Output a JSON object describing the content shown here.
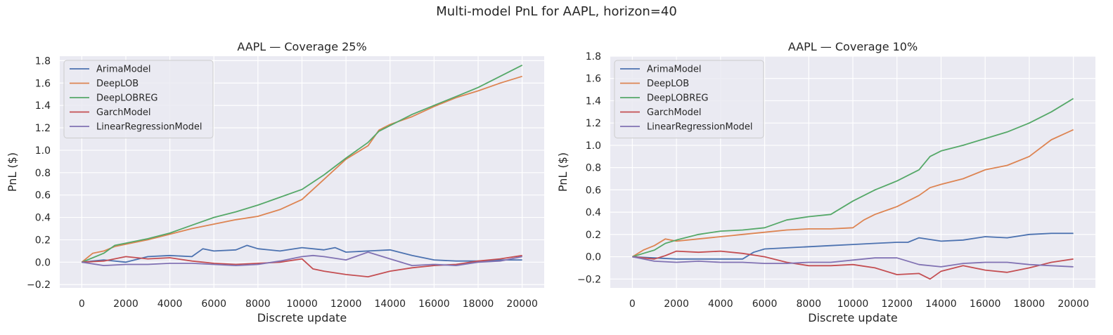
{
  "suptitle": "Multi-model PnL for AAPL, horizon=40",
  "colors": {
    "ArimaModel": "#4c72b0",
    "DeepLOB": "#dd8452",
    "DeepLOBREG": "#55a868",
    "GarchModel": "#c44e52",
    "LinearRegressionModel": "#8172b3",
    "plot_background": "#eaeaf2",
    "grid": "#ffffff"
  },
  "chart_data": [
    {
      "type": "line",
      "title": "AAPL — Coverage 25%",
      "xlabel": "Discrete update",
      "ylabel": "PnL ($)",
      "xlim": [
        -1000,
        21000
      ],
      "ylim": [
        -0.23,
        1.84
      ],
      "xticks": [
        0,
        2000,
        4000,
        6000,
        8000,
        10000,
        12000,
        14000,
        16000,
        18000,
        20000
      ],
      "yticks": [
        -0.2,
        0.0,
        0.2,
        0.4,
        0.6,
        0.8,
        1.0,
        1.2,
        1.4,
        1.6,
        1.8
      ],
      "grid": true,
      "legend_position": "upper-left",
      "series": [
        {
          "name": "ArimaModel",
          "x": [
            0,
            1000,
            2000,
            3000,
            4000,
            5000,
            5500,
            6000,
            7000,
            7500,
            8000,
            9000,
            10000,
            11000,
            11500,
            12000,
            13000,
            14000,
            15000,
            16000,
            17000,
            18000,
            19000,
            20000
          ],
          "y": [
            0.0,
            0.02,
            0.0,
            0.05,
            0.06,
            0.05,
            0.12,
            0.1,
            0.11,
            0.15,
            0.12,
            0.1,
            0.13,
            0.11,
            0.13,
            0.09,
            0.1,
            0.11,
            0.06,
            0.02,
            0.01,
            0.01,
            0.02,
            0.02
          ]
        },
        {
          "name": "DeepLOB",
          "x": [
            0,
            500,
            1000,
            1500,
            2000,
            3000,
            4000,
            5000,
            6000,
            7000,
            8000,
            9000,
            10000,
            11000,
            12000,
            13000,
            13500,
            14000,
            15000,
            16000,
            17000,
            18000,
            19000,
            20000
          ],
          "y": [
            0.0,
            0.08,
            0.1,
            0.14,
            0.16,
            0.2,
            0.25,
            0.3,
            0.34,
            0.38,
            0.41,
            0.47,
            0.56,
            0.74,
            0.92,
            1.04,
            1.18,
            1.23,
            1.3,
            1.39,
            1.47,
            1.53,
            1.6,
            1.66
          ]
        },
        {
          "name": "DeepLOBREG",
          "x": [
            0,
            500,
            1000,
            1500,
            2000,
            3000,
            4000,
            5000,
            6000,
            7000,
            8000,
            9000,
            10000,
            11000,
            12000,
            13000,
            13500,
            14000,
            15000,
            16000,
            17000,
            18000,
            19000,
            20000
          ],
          "y": [
            0.0,
            0.04,
            0.08,
            0.15,
            0.17,
            0.21,
            0.26,
            0.33,
            0.4,
            0.45,
            0.51,
            0.58,
            0.65,
            0.78,
            0.93,
            1.07,
            1.17,
            1.22,
            1.32,
            1.4,
            1.48,
            1.56,
            1.66,
            1.76
          ]
        },
        {
          "name": "GarchModel",
          "x": [
            0,
            1000,
            2000,
            3000,
            4000,
            5000,
            6000,
            7000,
            8000,
            9000,
            10000,
            10500,
            11000,
            12000,
            13000,
            14000,
            15000,
            16000,
            17000,
            18000,
            19000,
            20000
          ],
          "y": [
            0.0,
            0.01,
            0.05,
            0.03,
            0.04,
            0.01,
            -0.01,
            -0.02,
            -0.01,
            0.0,
            0.03,
            -0.06,
            -0.08,
            -0.11,
            -0.13,
            -0.08,
            -0.05,
            -0.03,
            -0.02,
            0.01,
            0.03,
            0.06
          ]
        },
        {
          "name": "LinearRegressionModel",
          "x": [
            0,
            1000,
            2000,
            3000,
            4000,
            5000,
            6000,
            7000,
            8000,
            9000,
            10000,
            10500,
            11000,
            12000,
            13000,
            14000,
            15000,
            16000,
            17000,
            18000,
            19000,
            20000
          ],
          "y": [
            0.0,
            -0.03,
            -0.02,
            -0.02,
            -0.01,
            -0.01,
            -0.02,
            -0.03,
            -0.02,
            0.01,
            0.05,
            0.06,
            0.05,
            0.02,
            0.09,
            0.03,
            -0.03,
            -0.02,
            -0.03,
            0.0,
            0.01,
            0.05
          ]
        }
      ]
    },
    {
      "type": "line",
      "title": "AAPL — Coverage 10%",
      "xlabel": "Discrete update",
      "ylabel": "PnL ($)",
      "xlim": [
        -1000,
        21000
      ],
      "ylim": [
        -0.28,
        1.8
      ],
      "xticks": [
        0,
        2000,
        4000,
        6000,
        8000,
        10000,
        12000,
        14000,
        16000,
        18000,
        20000
      ],
      "yticks": [
        -0.2,
        0.0,
        0.2,
        0.4,
        0.6,
        0.8,
        1.0,
        1.2,
        1.4,
        1.6,
        1.8
      ],
      "grid": true,
      "legend_position": "upper-left",
      "series": [
        {
          "name": "ArimaModel",
          "x": [
            0,
            1000,
            2000,
            3000,
            4000,
            5000,
            5500,
            6000,
            7000,
            8000,
            9000,
            10000,
            11000,
            12000,
            12500,
            13000,
            14000,
            15000,
            16000,
            17000,
            18000,
            19000,
            20000
          ],
          "y": [
            0.0,
            -0.01,
            -0.02,
            -0.02,
            -0.02,
            -0.02,
            0.04,
            0.07,
            0.08,
            0.09,
            0.1,
            0.11,
            0.12,
            0.13,
            0.13,
            0.17,
            0.14,
            0.15,
            0.18,
            0.17,
            0.2,
            0.21,
            0.21
          ]
        },
        {
          "name": "DeepLOB",
          "x": [
            0,
            500,
            1000,
            1500,
            2000,
            3000,
            4000,
            5000,
            6000,
            7000,
            8000,
            9000,
            10000,
            10500,
            11000,
            12000,
            13000,
            13500,
            14000,
            15000,
            16000,
            17000,
            18000,
            19000,
            20000
          ],
          "y": [
            0.0,
            0.06,
            0.1,
            0.16,
            0.14,
            0.16,
            0.18,
            0.2,
            0.22,
            0.24,
            0.25,
            0.25,
            0.26,
            0.33,
            0.38,
            0.45,
            0.55,
            0.62,
            0.65,
            0.7,
            0.78,
            0.82,
            0.9,
            1.05,
            1.14
          ]
        },
        {
          "name": "DeepLOBREG",
          "x": [
            0,
            500,
            1000,
            1500,
            2000,
            3000,
            4000,
            5000,
            6000,
            7000,
            8000,
            9000,
            10000,
            11000,
            12000,
            13000,
            13500,
            14000,
            15000,
            16000,
            17000,
            18000,
            19000,
            20000
          ],
          "y": [
            0.0,
            0.03,
            0.06,
            0.12,
            0.15,
            0.2,
            0.23,
            0.24,
            0.26,
            0.33,
            0.36,
            0.38,
            0.5,
            0.6,
            0.68,
            0.78,
            0.9,
            0.95,
            1.0,
            1.06,
            1.12,
            1.2,
            1.3,
            1.42
          ]
        },
        {
          "name": "GarchModel",
          "x": [
            0,
            1000,
            1500,
            2000,
            3000,
            4000,
            5000,
            6000,
            7000,
            8000,
            9000,
            10000,
            11000,
            12000,
            13000,
            13500,
            14000,
            15000,
            16000,
            17000,
            18000,
            19000,
            20000
          ],
          "y": [
            0.0,
            -0.02,
            0.01,
            0.05,
            0.04,
            0.05,
            0.03,
            0.0,
            -0.05,
            -0.08,
            -0.08,
            -0.07,
            -0.1,
            -0.16,
            -0.15,
            -0.2,
            -0.13,
            -0.08,
            -0.12,
            -0.14,
            -0.1,
            -0.05,
            -0.02
          ]
        },
        {
          "name": "LinearRegressionModel",
          "x": [
            0,
            1000,
            2000,
            3000,
            4000,
            5000,
            6000,
            7000,
            8000,
            9000,
            10000,
            11000,
            12000,
            13000,
            14000,
            15000,
            16000,
            17000,
            18000,
            19000,
            20000
          ],
          "y": [
            0.0,
            -0.04,
            -0.05,
            -0.04,
            -0.05,
            -0.05,
            -0.06,
            -0.06,
            -0.05,
            -0.05,
            -0.03,
            -0.01,
            -0.01,
            -0.07,
            -0.09,
            -0.06,
            -0.05,
            -0.05,
            -0.07,
            -0.08,
            -0.09
          ]
        }
      ]
    }
  ]
}
